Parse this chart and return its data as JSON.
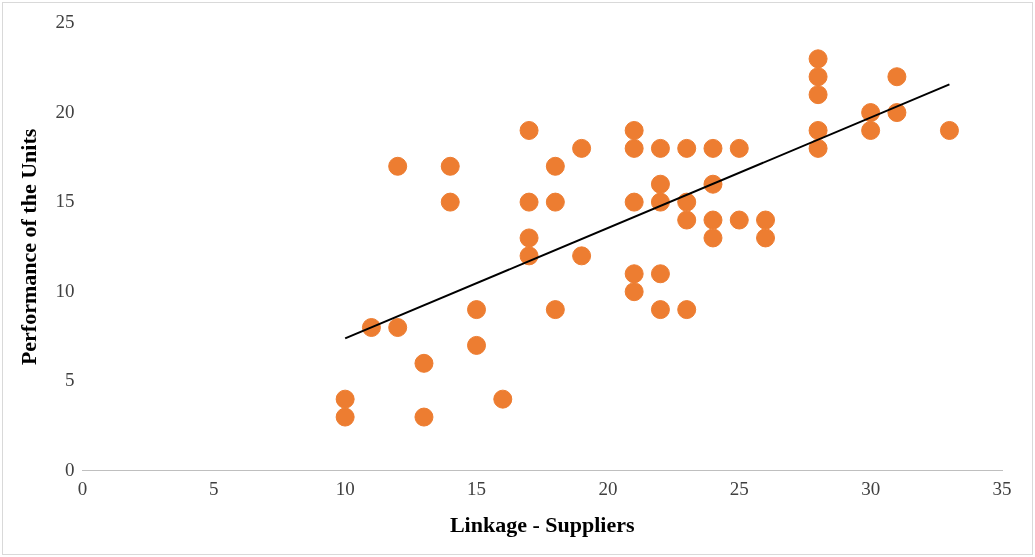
{
  "chart_data": {
    "type": "scatter",
    "xlabel": "Linkage - Suppliers",
    "ylabel": "Performance of the Units",
    "xlim": [
      0,
      35
    ],
    "xticks": [
      0,
      5,
      10,
      15,
      20,
      25,
      30,
      35
    ],
    "ylim": [
      0,
      25
    ],
    "yticks": [
      0,
      5,
      10,
      15,
      20,
      25
    ],
    "grid": false,
    "legend": false,
    "marker": "circle",
    "series": [
      {
        "color": "#ed7d31",
        "x": [
          10,
          10,
          11,
          12,
          12,
          13,
          13,
          14,
          14,
          15,
          15,
          16,
          17,
          17,
          17,
          17,
          18,
          18,
          18,
          19,
          19,
          21,
          21,
          21,
          21,
          21,
          22,
          22,
          22,
          22,
          22,
          23,
          23,
          23,
          23,
          24,
          24,
          24,
          24,
          25,
          25,
          26,
          26,
          28,
          28,
          28,
          28,
          28,
          30,
          30,
          31,
          31,
          33
        ],
        "values": [
          4,
          3,
          8,
          8,
          17,
          6,
          3,
          17,
          15,
          9,
          7,
          4,
          19,
          15,
          13,
          12,
          17,
          15,
          9,
          18,
          12,
          19,
          18,
          15,
          11,
          10,
          18,
          16,
          15,
          11,
          9,
          18,
          15,
          14,
          9,
          18,
          16,
          14,
          13,
          18,
          14,
          14,
          13,
          23,
          22,
          21,
          19,
          18,
          20,
          19,
          22,
          20,
          19
        ]
      },
      {
        "type": "line",
        "color": "#000000",
        "marker": "none",
        "x": [
          10,
          33
        ],
        "values": [
          7.39,
          21.57
        ]
      }
    ]
  }
}
